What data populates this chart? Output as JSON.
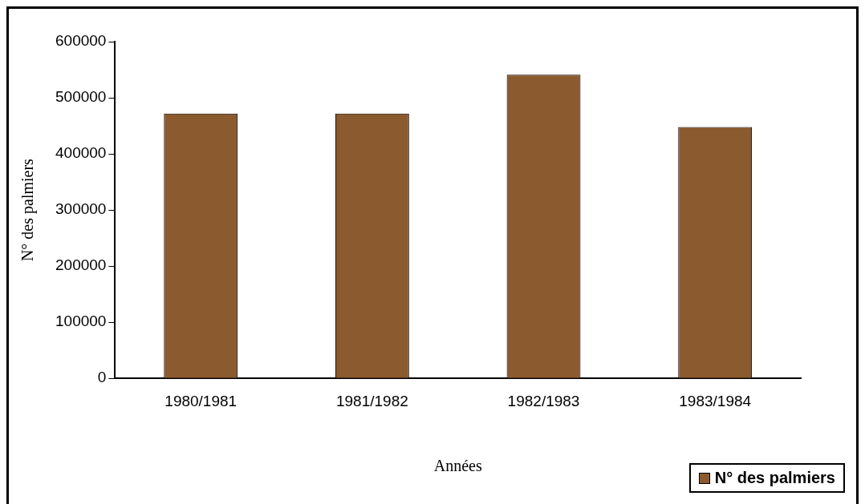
{
  "chart_data": {
    "type": "bar",
    "xlabel": "Années",
    "ylabel": "N° des palmiers",
    "categories": [
      "1980/1981",
      "1981/1982",
      "1982/1983",
      "1983/1984"
    ],
    "series": [
      {
        "name": "N° des palmiers",
        "color": "#8b5a2e",
        "values": [
          472000,
          472000,
          541000,
          448000
        ]
      }
    ],
    "ylim": [
      0,
      600000
    ],
    "yticks": [
      0,
      100000,
      200000,
      300000,
      400000,
      500000,
      600000
    ],
    "grid": false,
    "legend": "bottom right"
  }
}
